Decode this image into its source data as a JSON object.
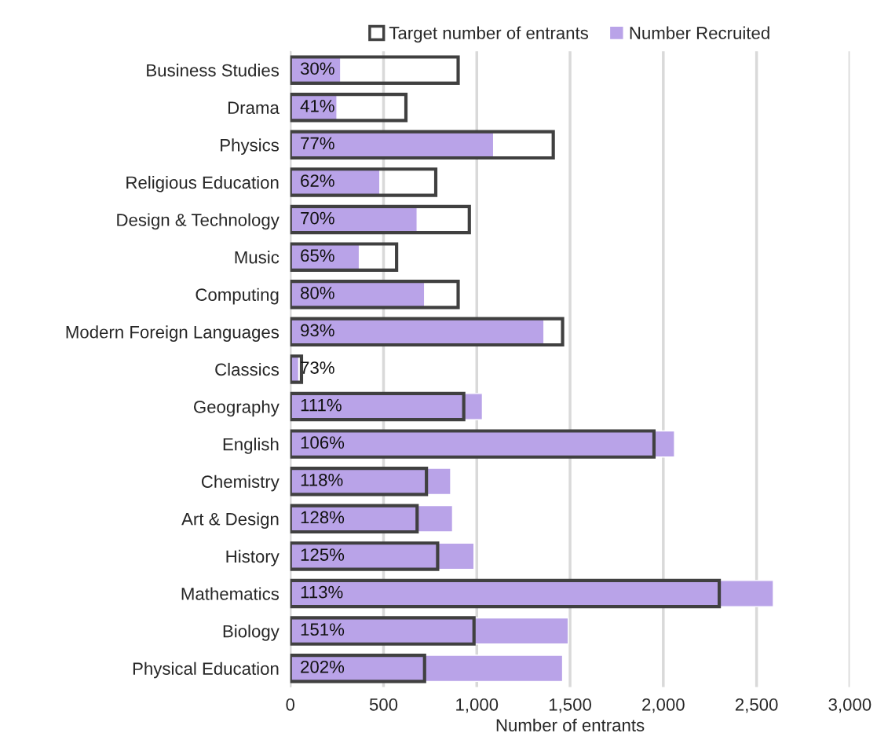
{
  "chart_data": {
    "type": "bar",
    "orientation": "horizontal",
    "xlabel": "Number of entrants",
    "categories": [
      "Business Studies",
      "Drama",
      "Physics",
      "Religious Education",
      "Design & Technology",
      "Music",
      "Computing",
      "Modern Foreign Languages",
      "Classics",
      "Geography",
      "English",
      "Chemistry",
      "Art & Design",
      "History",
      "Mathematics",
      "Biology",
      "Physical Education"
    ],
    "series": [
      {
        "name": "Number Recruited",
        "color": "#b9a3e8",
        "values": [
          270,
          250,
          1090,
          480,
          680,
          370,
          720,
          1360,
          45,
          1030,
          2060,
          860,
          870,
          985,
          2590,
          1490,
          1460
        ]
      },
      {
        "name": "Target number of entrants",
        "color": "#404040",
        "values": [
          900,
          620,
          1410,
          780,
          960,
          570,
          900,
          1460,
          60,
          930,
          1950,
          730,
          680,
          790,
          2300,
          985,
          720
        ]
      }
    ],
    "annotations": [
      "30%",
      "41%",
      "77%",
      "62%",
      "70%",
      "65%",
      "80%",
      "93%",
      "73%",
      "111%",
      "106%",
      "118%",
      "128%",
      "125%",
      "113%",
      "151%",
      "202%"
    ],
    "xlim": [
      0,
      3000
    ],
    "xticks": [
      0,
      {
        "value": 500,
        "label": "500"
      },
      {
        "value": 1000,
        "label": "1,000"
      },
      {
        "value": 1500,
        "label": "1,500"
      },
      {
        "value": 2000,
        "label": "2,000"
      },
      {
        "value": 2500,
        "label": "2,500"
      },
      {
        "value": 3000,
        "label": "3,000"
      }
    ],
    "grid": "x",
    "legend": "top"
  }
}
